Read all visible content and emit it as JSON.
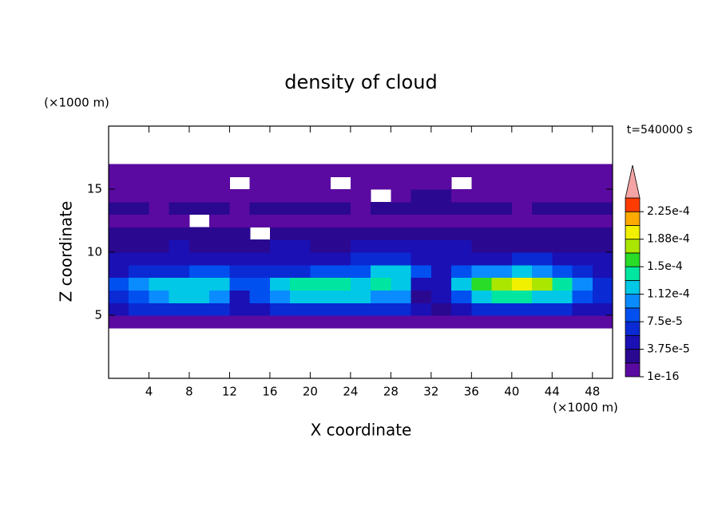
{
  "chart_data": {
    "type": "contour",
    "title": "density of cloud",
    "x_label": "X coordinate",
    "y_label": "Z coordinate",
    "x_unit": "(×1000 m)",
    "y_unit": "(×1000 m)",
    "time_label": "t=540000 s",
    "xlim": [
      0,
      50
    ],
    "ylim": [
      0,
      20
    ],
    "xticks": [
      4,
      8,
      12,
      16,
      20,
      24,
      28,
      32,
      36,
      40,
      44,
      48
    ],
    "yticks": [
      5,
      10,
      15
    ],
    "x": [
      1,
      3,
      5,
      7,
      9,
      11,
      13,
      15,
      17,
      19,
      21,
      23,
      25,
      27,
      29,
      31,
      33,
      35,
      37,
      39,
      41,
      43,
      45,
      47,
      49
    ],
    "y": [
      4.5,
      5.5,
      6.5,
      7.5,
      8.5,
      9.5,
      10.5,
      11.5,
      12.5,
      13.5,
      14.5,
      15.5,
      16.5
    ],
    "values": [
      [
        1e-05,
        1e-05,
        1e-05,
        1e-05,
        1e-05,
        1e-05,
        1e-05,
        1e-05,
        1e-05,
        1e-05,
        1e-05,
        1e-05,
        1e-05,
        1e-05,
        1e-05,
        1e-05,
        1e-05,
        1e-05,
        1e-05,
        1e-05,
        1e-05,
        1e-05,
        1e-05,
        1e-05,
        1e-05
      ],
      [
        5e-05,
        6e-05,
        7e-05,
        7e-05,
        7e-05,
        7e-05,
        4e-05,
        5e-05,
        6e-05,
        6e-05,
        7e-05,
        7e-05,
        7e-05,
        6e-05,
        6e-05,
        4e-05,
        3e-05,
        5e-05,
        6e-05,
        7e-05,
        7e-05,
        7e-05,
        6e-05,
        5e-05,
        4e-05
      ],
      [
        7e-05,
        9e-05,
        0.00011,
        0.00012,
        0.00012,
        0.00011,
        5e-05,
        8e-05,
        0.00011,
        0.00012,
        0.00012,
        0.00012,
        0.00012,
        0.00011,
        0.0001,
        3e-05,
        4e-05,
        9e-05,
        0.00012,
        0.00014,
        0.00014,
        0.00013,
        0.00012,
        9e-05,
        6e-05
      ],
      [
        8e-05,
        0.0001,
        0.00012,
        0.00012,
        0.00013,
        0.00012,
        8e-05,
        9e-05,
        0.00013,
        0.00014,
        0.00014,
        0.00014,
        0.00013,
        0.00014,
        0.00013,
        4e-05,
        4e-05,
        0.00012,
        0.00016,
        0.00017,
        0.00019,
        0.00017,
        0.00014,
        0.0001,
        6e-05
      ],
      [
        5e-05,
        6e-05,
        7e-05,
        7e-05,
        8e-05,
        8e-05,
        6e-05,
        6e-05,
        6e-05,
        7e-05,
        8e-05,
        8e-05,
        9e-05,
        0.00012,
        0.00012,
        8e-05,
        5e-05,
        8e-05,
        0.00011,
        0.00011,
        0.00012,
        0.00011,
        9e-05,
        7e-05,
        5e-05
      ],
      [
        4e-05,
        4e-05,
        4e-05,
        4e-05,
        5e-05,
        5e-05,
        4e-05,
        4e-05,
        5e-05,
        5e-05,
        5e-05,
        5e-05,
        6e-05,
        6e-05,
        6e-05,
        5e-05,
        5e-05,
        5e-05,
        5e-05,
        5e-05,
        6e-05,
        6e-05,
        5e-05,
        5e-05,
        4e-05
      ],
      [
        3e-05,
        3e-05,
        3e-05,
        4e-05,
        3e-05,
        3e-05,
        3e-05,
        3e-05,
        4e-05,
        4e-05,
        3e-05,
        3e-05,
        4e-05,
        4e-05,
        5e-05,
        5e-05,
        4e-05,
        4e-05,
        3e-05,
        3e-05,
        3e-05,
        3e-05,
        3e-05,
        3e-05,
        3e-05
      ],
      [
        2e-05,
        2e-05,
        3e-05,
        2e-05,
        2e-05,
        2e-05,
        2e-05,
        null,
        2e-05,
        2e-05,
        3e-05,
        3e-05,
        2e-05,
        2e-05,
        3e-05,
        3e-05,
        2e-05,
        2e-05,
        2e-05,
        3e-05,
        2e-05,
        2e-05,
        2e-05,
        2e-05,
        2e-05
      ],
      [
        1e-05,
        1e-05,
        1e-05,
        1e-05,
        null,
        1e-05,
        1e-05,
        1e-05,
        1e-05,
        1e-05,
        1e-05,
        1e-05,
        1e-05,
        1e-05,
        1e-05,
        1e-05,
        1e-05,
        1e-05,
        1e-05,
        1e-05,
        1e-05,
        1e-05,
        1e-05,
        1e-05,
        1e-05
      ],
      [
        2e-05,
        2e-05,
        1e-05,
        2e-05,
        2e-05,
        2e-05,
        1e-05,
        2e-05,
        2e-05,
        2e-05,
        2e-05,
        2e-05,
        1e-05,
        2e-05,
        2e-05,
        2e-05,
        2e-05,
        2e-05,
        2e-05,
        2e-05,
        1e-05,
        2e-05,
        2e-05,
        2e-05,
        2e-05
      ],
      [
        1e-05,
        1e-05,
        1e-05,
        1e-05,
        1e-05,
        1e-05,
        1e-05,
        1e-05,
        1e-05,
        1e-05,
        1e-05,
        1e-05,
        1e-05,
        null,
        1e-05,
        2e-05,
        2e-05,
        1e-05,
        1e-05,
        1e-05,
        1e-05,
        1e-05,
        1e-05,
        1e-05,
        1e-05
      ],
      [
        5e-06,
        5e-06,
        5e-06,
        5e-06,
        5e-06,
        5e-06,
        null,
        5e-06,
        5e-06,
        5e-06,
        5e-06,
        null,
        5e-06,
        5e-06,
        5e-06,
        5e-06,
        5e-06,
        null,
        5e-06,
        5e-06,
        5e-06,
        5e-06,
        5e-06,
        5e-06,
        5e-06
      ],
      [
        5e-06,
        5e-06,
        5e-06,
        5e-06,
        5e-06,
        5e-06,
        5e-06,
        5e-06,
        5e-06,
        5e-06,
        5e-06,
        5e-06,
        5e-06,
        5e-06,
        5e-06,
        5e-06,
        5e-06,
        5e-06,
        5e-06,
        5e-06,
        5e-06,
        5e-06,
        5e-06,
        5e-06,
        5e-06
      ]
    ],
    "levels": [
      1e-16,
      1.875e-05,
      3.75e-05,
      5.625e-05,
      7.5e-05,
      9.375e-05,
      0.0001125,
      0.00013125,
      0.00015,
      0.00016875,
      0.0001875,
      0.00020625,
      0.000225
    ],
    "colors": [
      "#5a0aa0",
      "#2a0890",
      "#1a10b4",
      "#0a2ad4",
      "#0050f0",
      "#0a8cff",
      "#00c8e6",
      "#00e6a0",
      "#28dc28",
      "#aae600",
      "#f0f000",
      "#ffaa00",
      "#ff3c00"
    ],
    "over_color": "#f4a4a4",
    "colorbar_ticks": [
      {
        "value": 1e-16,
        "label": "1e-16"
      },
      {
        "value": 3.75e-05,
        "label": "3.75e-5"
      },
      {
        "value": 7.5e-05,
        "label": "7.5e-5"
      },
      {
        "value": 0.0001125,
        "label": "1.12e-4"
      },
      {
        "value": 0.00015,
        "label": "1.5e-4"
      },
      {
        "value": 0.0001875,
        "label": "1.88e-4"
      },
      {
        "value": 0.000225,
        "label": "2.25e-4"
      }
    ]
  }
}
